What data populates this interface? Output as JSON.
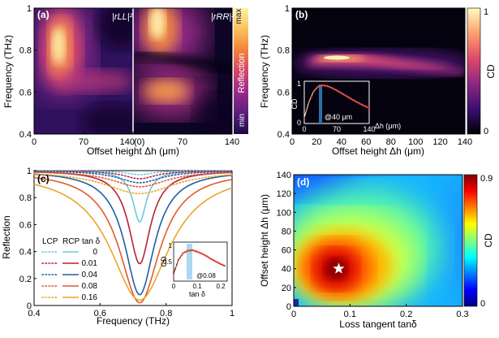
{
  "colors": {
    "cd_scale": [
      "#000004",
      "#3b0f70",
      "#8c2981",
      "#de4968",
      "#fe9f6d",
      "#fcfdbf"
    ],
    "jet_scale": [
      "#00007f",
      "#0000ff",
      "#007fff",
      "#00ffff",
      "#7fff7f",
      "#ffff00",
      "#ff7f00",
      "#ff0000",
      "#7f0000"
    ],
    "refl_scale": [
      "#1c0a48",
      "#5a1f7e",
      "#9a2a8a",
      "#d4456a",
      "#f3823c",
      "#fbc15a",
      "#fff1a8"
    ],
    "lcp_rcp": [
      "#6ec6e6",
      "#b7223a",
      "#1f5fa3",
      "#e35a2a",
      "#e9a62b"
    ],
    "highlight": "#a9d8f0",
    "fit": "#000000",
    "points": "#e0402d"
  },
  "panels": {
    "a": {
      "tag": "(a)",
      "ylabel": "Frequency (THz)",
      "xlabel": "Offset height Δh (μm)",
      "yticks": [
        "0.4",
        "0.6",
        "0.8",
        "1"
      ],
      "xticks_left": [
        "0",
        "70",
        "140"
      ],
      "xticks_right": [
        "(0)",
        "70",
        "140"
      ],
      "label_left": "|rLL|²",
      "label_right": "|rRR|²",
      "cbar_label": "Reflection",
      "cbar_max": "max",
      "cbar_min": "min"
    },
    "b": {
      "tag": "(b)",
      "ylabel": "Frequency (THz)",
      "xlabel": "Offset height Δh (μm)",
      "yticks": [
        "0.4",
        "0.6",
        "0.8",
        "1"
      ],
      "xticks": [
        "0",
        "20",
        "40",
        "60",
        "80",
        "100",
        "120",
        "140"
      ],
      "cbar_label": "CD",
      "cbar_ticks": [
        "0",
        "1"
      ],
      "inset": {
        "ylabel": "CD",
        "xlabel": "Δh (μm)",
        "yticks": [
          "0",
          "1"
        ],
        "xticks": [
          "0",
          "70",
          "140"
        ],
        "note": "@40 μm"
      }
    },
    "c": {
      "tag": "(c)",
      "ylabel": "Reflection",
      "xlabel": "Frequency (THz)",
      "yticks": [
        "0",
        "0.2",
        "0.4",
        "0.6",
        "0.8",
        "1"
      ],
      "xticks": [
        "0.4",
        "0.6",
        "0.8",
        "1"
      ],
      "legend_header": [
        "LCP",
        "RCP",
        "tan δ"
      ],
      "legend_values": [
        "0",
        "0.01",
        "0.04",
        "0.08",
        "0.16"
      ],
      "inset": {
        "ylabel": "CD",
        "xlabel": "tan δ",
        "yticks": [
          "0.5",
          "1"
        ],
        "xticks": [
          "0",
          "0.1",
          "0.2"
        ],
        "note": "@0.08"
      }
    },
    "d": {
      "tag": "(d)",
      "ylabel": "Offset height Δh (μm)",
      "xlabel": "Loss tangent tanδ",
      "yticks": [
        "0",
        "20",
        "40",
        "60",
        "80",
        "100",
        "120",
        "140"
      ],
      "xticks": [
        "0",
        "0.1",
        "0.2",
        "0.3"
      ],
      "cbar_label": "CD",
      "cbar_ticks": [
        "0",
        "0.9"
      ]
    }
  },
  "chart_data": [
    {
      "type": "heatmap",
      "panel": "a",
      "xlabel": "Offset height Δh (μm)",
      "ylabel": "Frequency (THz)",
      "xlim": [
        0,
        140
      ],
      "ylim": [
        0.4,
        1.0
      ],
      "subplots": [
        "|rLL|²",
        "|rRR|²"
      ],
      "colorbar": "Reflection (min to max)"
    },
    {
      "type": "heatmap",
      "panel": "b",
      "xlabel": "Offset height Δh (μm)",
      "ylabel": "Frequency (THz)",
      "xlim": [
        0,
        140
      ],
      "ylim": [
        0.4,
        1.0
      ],
      "colorbar": "CD",
      "clim": [
        0,
        1
      ],
      "inset": {
        "type": "line",
        "xlabel": "Δh (μm)",
        "ylabel": "CD",
        "x": [
          0,
          10,
          20,
          30,
          40,
          50,
          60,
          70,
          80,
          90,
          100,
          110,
          120,
          130,
          140
        ],
        "y": [
          0.15,
          0.55,
          0.82,
          0.95,
          0.98,
          0.96,
          0.91,
          0.85,
          0.78,
          0.71,
          0.64,
          0.57,
          0.51,
          0.45,
          0.4
        ],
        "marker": "@40 μm"
      }
    },
    {
      "type": "line",
      "panel": "c",
      "xlabel": "Frequency (THz)",
      "ylabel": "Reflection",
      "xlim": [
        0.4,
        1.0
      ],
      "ylim": [
        0,
        1
      ],
      "center": 0.72,
      "series": [
        {
          "name": "0",
          "lcp_min": 0.97,
          "rcp_min": 0.62,
          "lcp_width": 0.05,
          "rcp_width": 0.025
        },
        {
          "name": "0.01",
          "lcp_min": 0.94,
          "rcp_min": 0.31,
          "lcp_width": 0.06,
          "rcp_width": 0.04
        },
        {
          "name": "0.04",
          "lcp_min": 0.91,
          "rcp_min": 0.08,
          "lcp_width": 0.08,
          "rcp_width": 0.055
        },
        {
          "name": "0.08",
          "lcp_min": 0.88,
          "rcp_min": 0.02,
          "lcp_width": 0.1,
          "rcp_width": 0.075
        },
        {
          "name": "0.16",
          "lcp_min": 0.83,
          "rcp_min": 0.04,
          "lcp_width": 0.13,
          "rcp_width": 0.11
        }
      ],
      "inset": {
        "type": "line",
        "xlabel": "tan δ",
        "ylabel": "CD",
        "x": [
          0,
          0.02,
          0.04,
          0.06,
          0.08,
          0.1,
          0.12,
          0.14,
          0.16,
          0.18,
          0.2,
          0.22
        ],
        "y": [
          0.45,
          0.72,
          0.86,
          0.91,
          0.92,
          0.89,
          0.85,
          0.8,
          0.74,
          0.69,
          0.64,
          0.6
        ],
        "marker": "@0.08"
      }
    },
    {
      "type": "heatmap",
      "panel": "d",
      "xlabel": "Loss tangent tanδ",
      "ylabel": "Offset height Δh (μm)",
      "xlim": [
        0,
        0.3
      ],
      "ylim": [
        0,
        140
      ],
      "colorbar": "CD",
      "clim": [
        0,
        0.9
      ],
      "optimum": {
        "x": 0.08,
        "y": 40
      }
    }
  ]
}
